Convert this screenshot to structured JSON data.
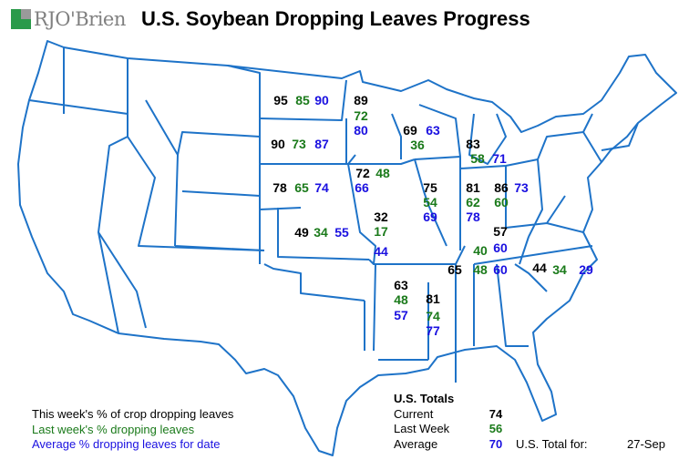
{
  "header": {
    "logo_text": "RJO'Brien",
    "title": "U.S. Soybean Dropping Leaves Progress"
  },
  "colors": {
    "current": "#000000",
    "last_week": "#1a7a1a",
    "average": "#1a10e0",
    "border": "#1e73c8"
  },
  "states": [
    {
      "current": 95,
      "last_week": 85,
      "average": 90
    },
    {
      "current": 90,
      "last_week": 73,
      "average": 87
    },
    {
      "current": 78,
      "last_week": 65,
      "average": 74
    },
    {
      "current": 49,
      "last_week": 34,
      "average": 55
    },
    {
      "current": 89,
      "last_week": 72,
      "average": 80
    },
    {
      "current": 72,
      "last_week": 48,
      "average": 66
    },
    {
      "current": 32,
      "last_week": 17,
      "average": 44
    },
    {
      "current": 69,
      "last_week": 36,
      "average": 63
    },
    {
      "current": 83,
      "last_week": 58,
      "average": 71
    },
    {
      "current": 75,
      "last_week": 54,
      "average": 69
    },
    {
      "current": 81,
      "last_week": 62,
      "average": 78
    },
    {
      "current": 86,
      "last_week": 60,
      "average": 73
    },
    {
      "current": 57,
      "last_week": 40,
      "average": 60
    },
    {
      "current": 65,
      "last_week": 48,
      "average": 60
    },
    {
      "current": 44,
      "last_week": 34,
      "average": 29
    },
    {
      "current": 63,
      "last_week": 48,
      "average": 57
    },
    {
      "current": 81,
      "last_week": 74,
      "average": 77
    }
  ],
  "legend": {
    "current": "This week's % of crop dropping leaves",
    "last_week": "Last week's % dropping leaves",
    "average": "Average % dropping leaves for date"
  },
  "totals": {
    "heading": "U.S. Totals",
    "current_label": "Current",
    "current": "74",
    "last_week_label": "Last Week",
    "last_week": "56",
    "average_label": "Average",
    "average": "70",
    "date_label": "U.S. Total for:",
    "date": "27-Sep"
  }
}
